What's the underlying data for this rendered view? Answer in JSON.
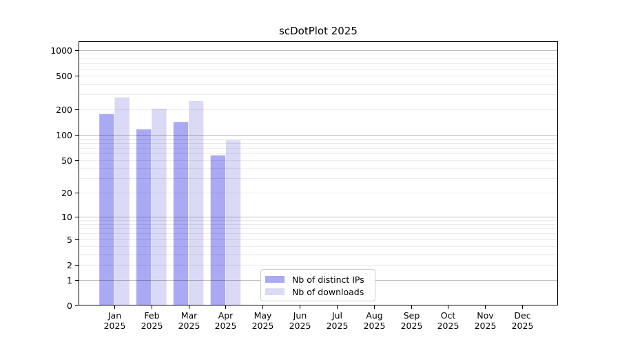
{
  "chart_data": {
    "type": "bar",
    "title": "scDotPlot 2025",
    "year_label": "2025",
    "categories": [
      "Jan",
      "Feb",
      "Mar",
      "Apr",
      "May",
      "Jun",
      "Jul",
      "Aug",
      "Sep",
      "Oct",
      "Nov",
      "Dec"
    ],
    "series": [
      {
        "name": "Nb of distinct IPs",
        "color": "#a9a9f4",
        "values": [
          176,
          116,
          142,
          57,
          0,
          0,
          0,
          0,
          0,
          0,
          0,
          0
        ]
      },
      {
        "name": "Nb of downloads",
        "color": "#dadaf7",
        "values": [
          277,
          204,
          250,
          86,
          0,
          0,
          0,
          0,
          0,
          0,
          0,
          0
        ]
      }
    ],
    "y_scale": "log1p",
    "ylim": [
      0,
      1240
    ],
    "y_ticks": [
      0,
      1,
      2,
      5,
      10,
      20,
      50,
      100,
      200,
      500,
      1000
    ],
    "y_major_gridlines": [
      1,
      10,
      100,
      1000
    ],
    "y_minor_gridlines": [
      2,
      3,
      4,
      5,
      6,
      7,
      8,
      9,
      20,
      30,
      40,
      50,
      60,
      70,
      80,
      90,
      200,
      300,
      400,
      500,
      600,
      700,
      800,
      900
    ],
    "grid": true,
    "legend_position": "inside-bottom-center-left",
    "colors": {
      "axis": "#000000",
      "background": "#ffffff",
      "major_grid": "rgba(0,0,0,0.26)",
      "minor_grid": "rgba(0,0,0,0.08)"
    }
  }
}
